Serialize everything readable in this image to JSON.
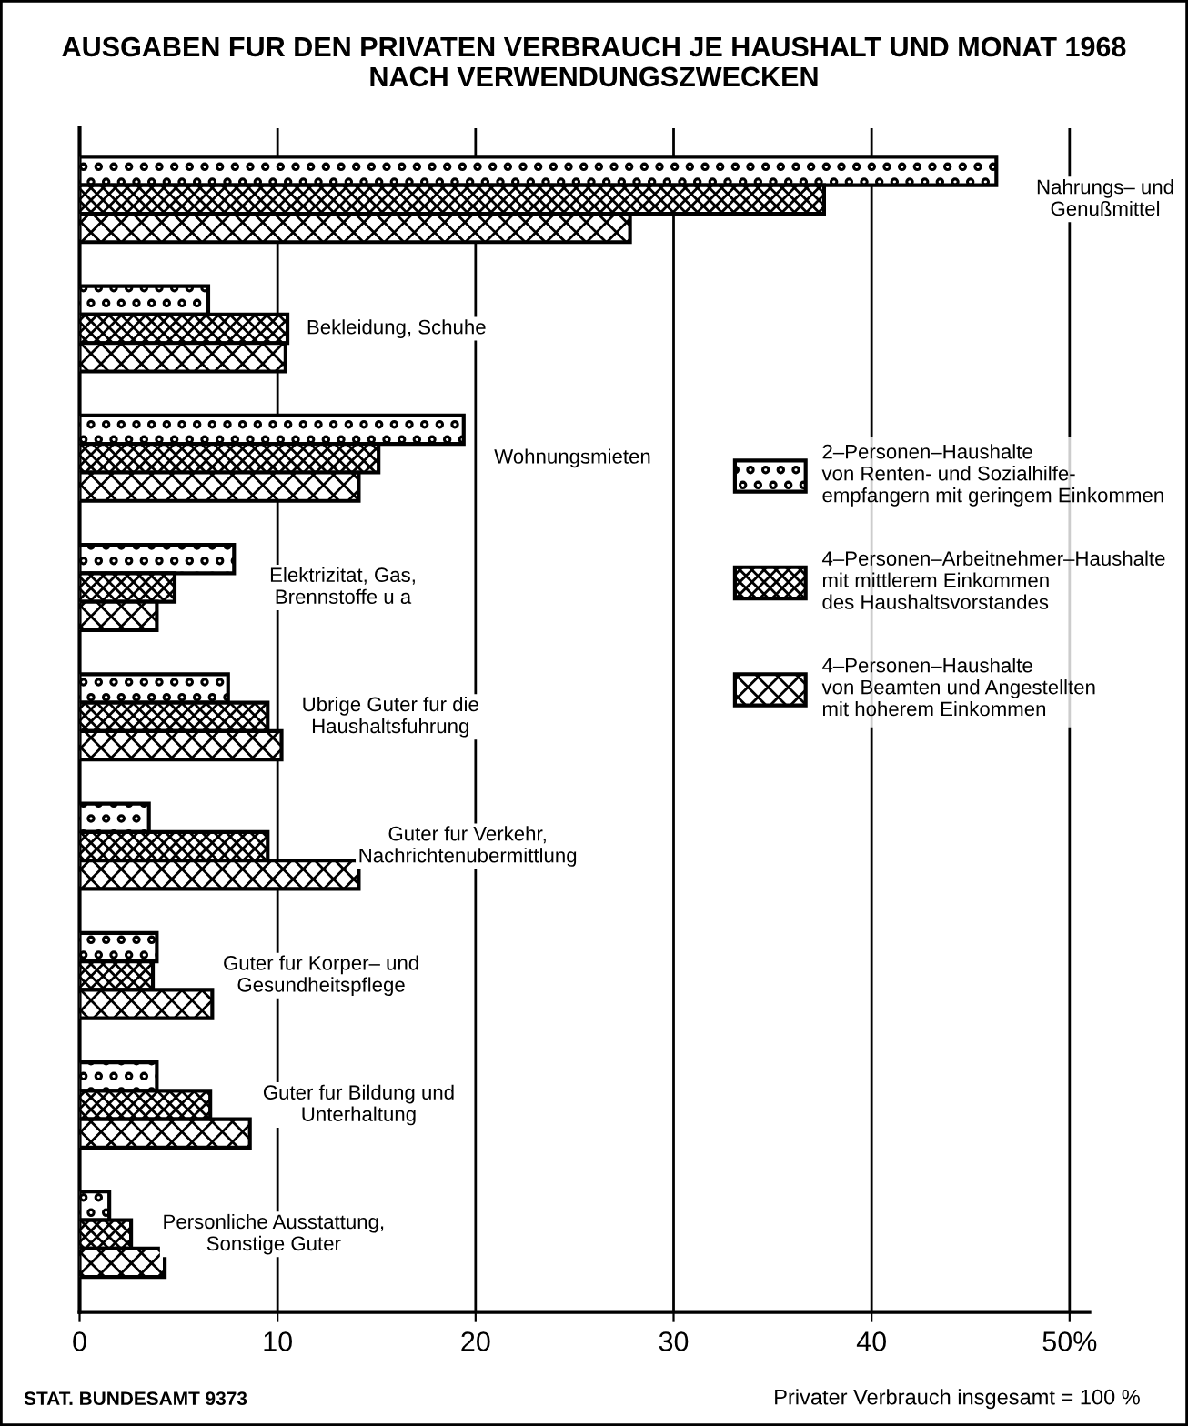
{
  "chart_data": {
    "type": "bar",
    "orientation": "horizontal",
    "title": "AUSGABEN FUR DEN PRIVATEN VERBRAUCH JE HAUSHALT UND MONAT 1968\nNACH VERWENDUNGSZWECKEN",
    "categories": [
      "Nahrungs– und\nGenußmittel",
      "Bekleidung, Schuhe",
      "Wohnungsmieten",
      "Elektrizitat, Gas,\nBrennstoffe u a",
      "Ubrige Guter fur die\nHaushaltsfuhrung",
      "Guter fur Verkehr,\nNachrichtenubermittlung",
      "Guter fur Korper– und\nGesundheitspflege",
      "Guter fur Bildung und\nUnterhaltung",
      "Personliche Ausstattung,\nSonstige Guter"
    ],
    "series": [
      {
        "name": "2–Personen–Haushalte\nvon Renten- und Sozialhilfe-\nempfangern mit geringem Einkommen",
        "color": "#000000",
        "values": [
          46.3,
          6.5,
          19.4,
          7.8,
          7.5,
          3.5,
          3.9,
          3.9,
          1.5
        ]
      },
      {
        "name": "4–Personen–Arbeitnehmer–Haushalte\nmit mittlerem Einkommen\ndes Haushaltsvorstandes",
        "color": "#000000",
        "values": [
          37.6,
          10.5,
          15.1,
          4.8,
          9.5,
          9.5,
          3.7,
          6.6,
          2.6
        ]
      },
      {
        "name": "4–Personen–Haushalte\nvon Beamten und Angestellten\nmit hoherem Einkommen",
        "color": "#000000",
        "values": [
          27.8,
          10.4,
          14.1,
          3.9,
          10.2,
          14.1,
          6.7,
          8.6,
          4.3
        ]
      }
    ],
    "xlim": [
      0,
      51
    ],
    "xticks": [
      0,
      10,
      20,
      30,
      40,
      {
        "value": 50,
        "label": "50%"
      }
    ],
    "grid": "x",
    "legend": "right",
    "annotations": [
      "STAT. BUNDESAMT 9373",
      "Privater Verbrauch insgesamt = 100 %"
    ]
  }
}
